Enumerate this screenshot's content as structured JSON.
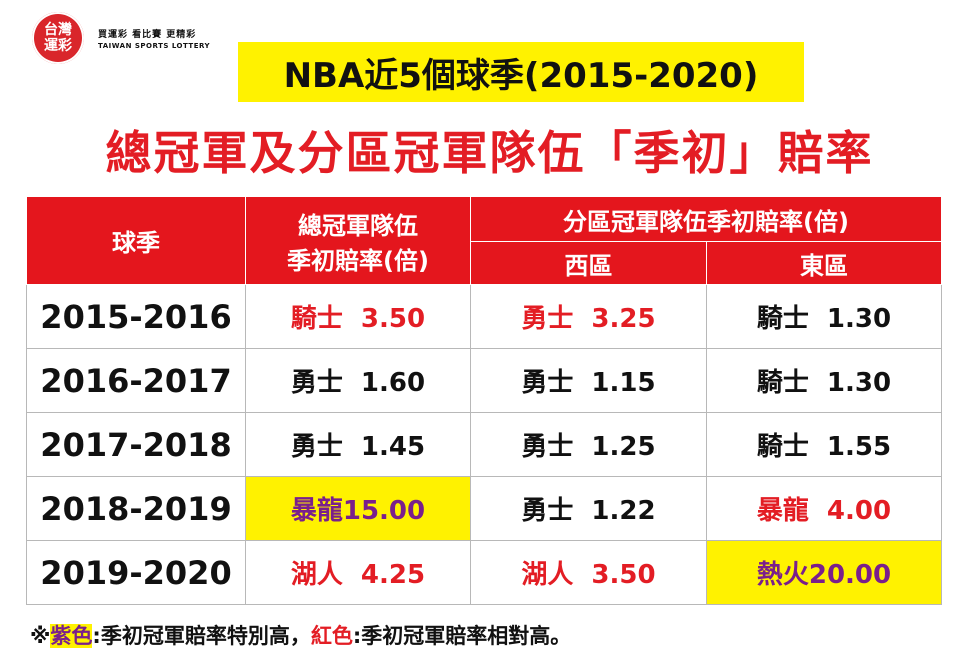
{
  "logo": {
    "badge_line1": "台灣",
    "badge_line2": "運彩",
    "slogan": "買運彩 看比賽 更精彩",
    "english": "TAIWAN SPORTS LOTTERY"
  },
  "title": "NBA近5個球季(2015-2020)",
  "subtitle": "總冠軍及分區冠軍隊伍「季初」賠率",
  "table": {
    "header_season": "球季",
    "header_champion_line1": "總冠軍隊伍",
    "header_champion_line2": "季初賠率(倍)",
    "header_division": "分區冠軍隊伍季初賠率(倍)",
    "header_west": "西區",
    "header_east": "東區",
    "rows": [
      {
        "season": "2015-2016",
        "champion": {
          "team": "騎士",
          "odds": "3.50"
        },
        "west": {
          "team": "勇士",
          "odds": "3.25"
        },
        "east": {
          "team": "騎士",
          "odds": "1.30"
        }
      },
      {
        "season": "2016-2017",
        "champion": {
          "team": "勇士",
          "odds": "1.60"
        },
        "west": {
          "team": "勇士",
          "odds": "1.15"
        },
        "east": {
          "team": "騎士",
          "odds": "1.30"
        }
      },
      {
        "season": "2017-2018",
        "champion": {
          "team": "勇士",
          "odds": "1.45"
        },
        "west": {
          "team": "勇士",
          "odds": "1.25"
        },
        "east": {
          "team": "騎士",
          "odds": "1.55"
        }
      },
      {
        "season": "2018-2019",
        "champion": {
          "team": "暴龍",
          "odds": "15.00"
        },
        "west": {
          "team": "勇士",
          "odds": "1.22"
        },
        "east": {
          "team": "暴龍",
          "odds": "4.00"
        }
      },
      {
        "season": "2019-2020",
        "champion": {
          "team": "湖人",
          "odds": "4.25"
        },
        "west": {
          "team": "湖人",
          "odds": "3.50"
        },
        "east": {
          "team": "熱火",
          "odds": "20.00"
        }
      }
    ]
  },
  "footnote": {
    "prefix": "※",
    "purple_label": "紫色",
    "purple_desc": ":季初冠軍賠率特別高，",
    "red_label": "紅色",
    "red_desc": ":季初冠軍賠率相對高。"
  },
  "colors": {
    "highlight_yellow": "#fff200",
    "red": "#e31d24",
    "purple": "#7a1f8c",
    "header_red": "#e4161d"
  }
}
